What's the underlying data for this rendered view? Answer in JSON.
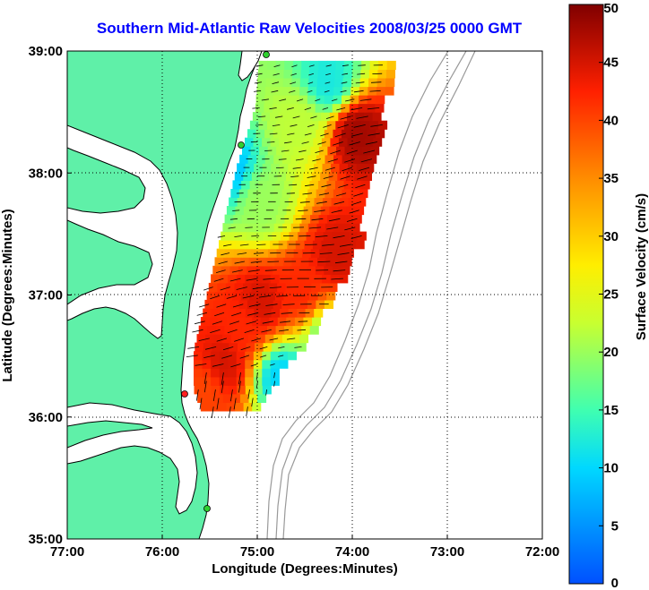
{
  "chart_data": {
    "type": "heatmap",
    "title": "Southern Mid-Atlantic Raw Velocities 2008/03/25 0000 GMT",
    "xlabel": "Longitude (Degrees:Minutes)",
    "ylabel": "Latitude (Degrees:Minutes)",
    "x_ticks": [
      "77:00",
      "76:00",
      "75:00",
      "74:00",
      "73:00",
      "72:00"
    ],
    "y_ticks": [
      "39:00",
      "38:00",
      "37:00",
      "36:00",
      "35:00"
    ],
    "xlim": [
      -77,
      -72
    ],
    "ylim": [
      35,
      39
    ],
    "grid": "dotted",
    "colorbar": {
      "label": "Surface Velocity (cm/s)",
      "ticks": [
        "0",
        "5",
        "10",
        "15",
        "20",
        "25",
        "30",
        "35",
        "40",
        "45",
        "50"
      ],
      "range": [
        0,
        50
      ],
      "placement": "right"
    },
    "field_regions": [
      {
        "lon": -75.6,
        "lat": 36.2,
        "speed": 40
      },
      {
        "lon": -75.4,
        "lat": 36.4,
        "speed": 45
      },
      {
        "lon": -75.2,
        "lat": 36.7,
        "speed": 42
      },
      {
        "lon": -75.0,
        "lat": 36.9,
        "speed": 45
      },
      {
        "lon": -74.6,
        "lat": 37.0,
        "speed": 42
      },
      {
        "lon": -74.2,
        "lat": 37.3,
        "speed": 45
      },
      {
        "lon": -74.0,
        "lat": 38.3,
        "speed": 48
      },
      {
        "lon": -75.0,
        "lat": 37.7,
        "speed": 20
      },
      {
        "lon": -75.4,
        "lat": 38.0,
        "speed": 8
      },
      {
        "lon": -74.8,
        "lat": 36.3,
        "speed": 10
      },
      {
        "lon": -74.3,
        "lat": 36.6,
        "speed": 18
      },
      {
        "lon": -74.3,
        "lat": 38.7,
        "speed": 12
      },
      {
        "lon": -74.6,
        "lat": 38.4,
        "speed": 22
      }
    ]
  }
}
